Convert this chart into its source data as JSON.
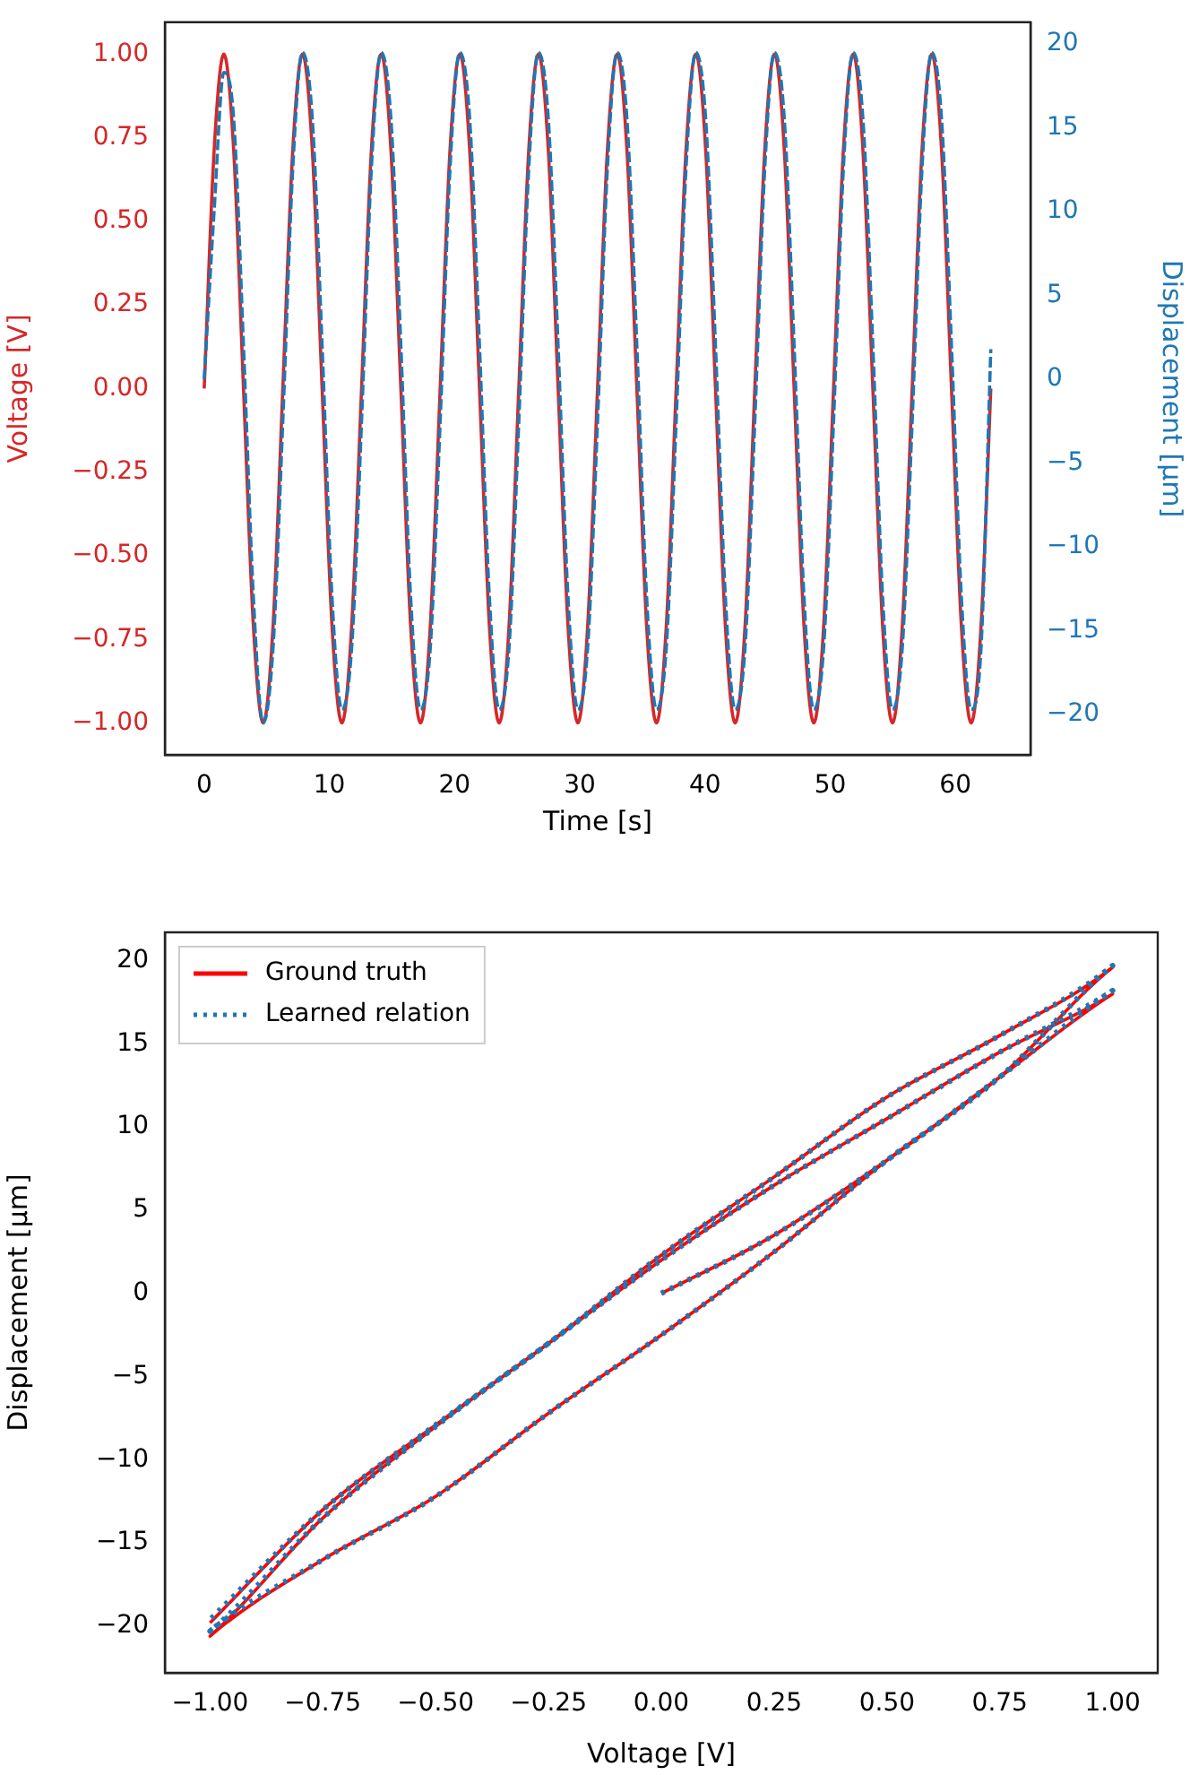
{
  "chart_data": [
    {
      "type": "line",
      "xlabel": "Time [s]",
      "ylabel": "Voltage [V]",
      "y2label": "Displacement [μm]",
      "marker": "none",
      "x": [
        0,
        0.79,
        1.57,
        2.36,
        3.14,
        3.93,
        4.71,
        5.5,
        6.28,
        7.07,
        7.85,
        8.64,
        9.42,
        10.21,
        11,
        11.78,
        12.57,
        13.35,
        14.14,
        14.92,
        15.71,
        16.49,
        17.28,
        18.06,
        18.85,
        19.63,
        20.42,
        21.21,
        21.99,
        22.78,
        23.56,
        24.35,
        25.13,
        25.92,
        26.7,
        27.49,
        28.27,
        29.06,
        29.85,
        30.63,
        31.42,
        32.2,
        32.99,
        33.77,
        34.56,
        35.34,
        36.13,
        36.91,
        37.7,
        38.48,
        39.27,
        40.06,
        40.84,
        41.63,
        42.41,
        43.2,
        43.98,
        44.77,
        45.55,
        46.34,
        47.12,
        47.91,
        48.69,
        49.48,
        50.27,
        51.05,
        51.84,
        52.62,
        53.41,
        54.19,
        54.98,
        55.76,
        56.55,
        57.33,
        58.12,
        58.9,
        59.69,
        60.48,
        61.26,
        62.05,
        62.83
      ],
      "series": [
        {
          "color": "#d62728",
          "line_style": "solid",
          "values": [
            0,
            0.71,
            1,
            0.71,
            0,
            -0.71,
            -1,
            -0.71,
            0,
            0.71,
            1,
            0.71,
            0,
            -0.71,
            -1,
            -0.71,
            0,
            0.71,
            1,
            0.71,
            0,
            -0.71,
            -1,
            -0.71,
            0,
            0.71,
            1,
            0.71,
            0,
            -0.71,
            -1,
            -0.71,
            0,
            0.71,
            1,
            0.71,
            0,
            -0.71,
            -1,
            -0.71,
            0,
            0.71,
            1,
            0.71,
            0,
            -0.71,
            -1,
            -0.71,
            0,
            0.71,
            1,
            0.71,
            0,
            -0.71,
            -1,
            -0.71,
            0,
            0.71,
            1,
            0.71,
            0,
            -0.71,
            -1,
            -0.71,
            0,
            0.71,
            1,
            0.71,
            0,
            -0.71,
            -1,
            -0.71,
            0,
            0.71,
            1,
            0.71,
            0,
            -0.71,
            -1,
            -0.71,
            0
          ]
        },
        {
          "color": "#1f77b4",
          "line_style": "dashed",
          "axis": "y2",
          "values": [
            0,
            10,
            18.3,
            15.5,
            2,
            -13,
            -20.5,
            -16,
            -2.5,
            12.5,
            19.5,
            15.5,
            2,
            -13,
            -19.7,
            -16,
            -2.5,
            12.5,
            19.5,
            15.5,
            2,
            -13,
            -19.7,
            -16,
            -2.5,
            12.5,
            19.5,
            15.5,
            2,
            -13,
            -19.7,
            -16,
            -2.5,
            12.5,
            19.5,
            15.5,
            2,
            -13,
            -19.7,
            -16,
            -2.5,
            12.5,
            19.5,
            15.5,
            2,
            -13,
            -19.7,
            -16,
            -2.5,
            12.5,
            19.5,
            15.5,
            2,
            -13,
            -19.7,
            -16,
            -2.5,
            12.5,
            19.5,
            15.5,
            2,
            -13,
            -19.7,
            -16,
            -2.5,
            12.5,
            19.5,
            15.5,
            2,
            -13,
            -19.7,
            -16,
            -2.5,
            12.5,
            19.5,
            15.5,
            2,
            -13,
            -19.7,
            -16,
            1.8
          ]
        }
      ],
      "xlim": [
        -3.14,
        66
      ],
      "xticks": [
        0,
        10,
        20,
        30,
        40,
        50,
        60
      ],
      "ylim": [
        -1.095,
        1.095
      ],
      "yticks": [
        {
          "value": -1,
          "label": "−1.00"
        },
        {
          "value": -0.75,
          "label": "−0.75"
        },
        {
          "value": -0.5,
          "label": "−0.50"
        },
        {
          "value": -0.25,
          "label": "−0.25"
        },
        {
          "value": 0,
          "label": "0.00"
        },
        {
          "value": 0.25,
          "label": "0.25"
        },
        {
          "value": 0.5,
          "label": "0.50"
        },
        {
          "value": 0.75,
          "label": "0.75"
        },
        {
          "value": 1,
          "label": "1.00"
        }
      ],
      "y2lim": [
        -22.4,
        21.3
      ],
      "y2ticks": [
        {
          "value": -20,
          "label": "−20"
        },
        {
          "value": -15,
          "label": "−15"
        },
        {
          "value": -10,
          "label": "−10"
        },
        {
          "value": -5,
          "label": "−5"
        },
        0,
        5,
        10,
        15,
        20
      ]
    },
    {
      "type": "line",
      "xlabel": "Voltage [V]",
      "ylabel": "Displacement [μm]",
      "marker": "none",
      "legend": "top left",
      "series": [
        {
          "name": "Ground truth",
          "color": "#ff0000",
          "line_style": "solid",
          "x": [
            0,
            0.25,
            0.5,
            0.75,
            1,
            0.75,
            0.5,
            0.25,
            0,
            -0.25,
            -0.5,
            -0.75,
            -1,
            -0.75,
            -0.5,
            -0.25,
            0,
            0.25,
            0.5,
            0.75,
            1,
            0.75,
            0.5,
            0.25,
            0,
            -0.25,
            -0.5,
            -0.75,
            -1
          ],
          "values": [
            0,
            3.5,
            8,
            13,
            18,
            14.5,
            10.5,
            6.5,
            2,
            -3,
            -8,
            -13.5,
            -20.6,
            -16,
            -12.2,
            -7.2,
            -2.5,
            2.5,
            8,
            13,
            19.6,
            15.5,
            11.8,
            7,
            2.3,
            -3,
            -7.9,
            -13,
            -19.8
          ]
        },
        {
          "name": "Learned relation",
          "color": "#1f77b4",
          "line_style": "dotted",
          "x": [
            0,
            0.25,
            0.5,
            0.75,
            1,
            0.75,
            0.5,
            0.25,
            0,
            -0.25,
            -0.5,
            -0.75,
            -1,
            -0.75,
            -0.5,
            -0.25,
            0,
            0.25,
            0.5,
            0.75,
            1,
            0.75,
            0.5,
            0.25,
            0,
            -0.25,
            -0.5,
            -0.75,
            -1
          ],
          "values": [
            0,
            3.5,
            8,
            13,
            18.2,
            14.5,
            10.5,
            6.5,
            2,
            -3,
            -8,
            -13.5,
            -20.3,
            -16,
            -12.2,
            -7.2,
            -2.5,
            2.5,
            8,
            13,
            19.7,
            15.5,
            11.8,
            7,
            2.3,
            -3,
            -7.9,
            -13,
            -19.6
          ]
        }
      ],
      "xlim": [
        -1.1,
        1.1
      ],
      "xticks": [
        {
          "value": -1,
          "label": "−1.00"
        },
        {
          "value": -0.75,
          "label": "−0.75"
        },
        {
          "value": -0.5,
          "label": "−0.50"
        },
        {
          "value": -0.25,
          "label": "−0.25"
        },
        {
          "value": 0,
          "label": "0.00"
        },
        {
          "value": 0.25,
          "label": "0.25"
        },
        {
          "value": 0.5,
          "label": "0.50"
        },
        {
          "value": 0.75,
          "label": "0.75"
        },
        {
          "value": 1,
          "label": "1.00"
        }
      ],
      "ylim": [
        -22.8,
        21.7
      ],
      "yticks": [
        {
          "value": -20,
          "label": "−20"
        },
        {
          "value": -15,
          "label": "−15"
        },
        {
          "value": -10,
          "label": "−10"
        },
        {
          "value": -5,
          "label": "−5"
        },
        0,
        5,
        10,
        15,
        20
      ]
    }
  ]
}
